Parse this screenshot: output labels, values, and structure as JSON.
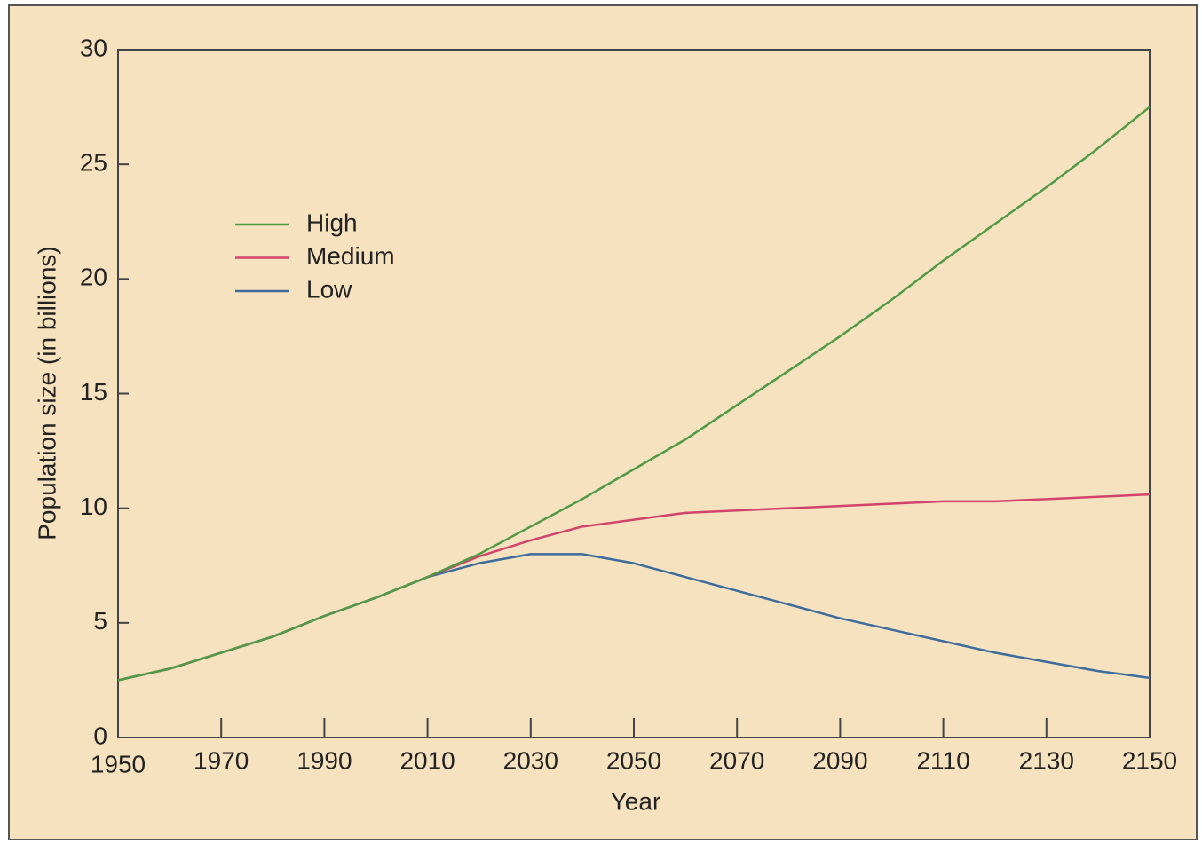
{
  "chart_data": {
    "type": "line",
    "x_label": "Year",
    "y_label": "Population size (in billions)",
    "x": [
      1950,
      1960,
      1970,
      1980,
      1990,
      2000,
      2010,
      2020,
      2030,
      2040,
      2050,
      2060,
      2070,
      2080,
      2090,
      2100,
      2110,
      2120,
      2130,
      2140,
      2150
    ],
    "series": [
      {
        "name": "High",
        "color": "#4f9a45",
        "values": [
          2.5,
          3.0,
          3.7,
          4.4,
          5.3,
          6.1,
          7.0,
          8.0,
          9.2,
          10.4,
          11.7,
          13.0,
          14.5,
          16.0,
          17.5,
          19.1,
          20.8,
          22.4,
          24.0,
          25.7,
          27.5
        ]
      },
      {
        "name": "Medium",
        "color": "#d2436c",
        "values": [
          2.5,
          3.0,
          3.7,
          4.4,
          5.3,
          6.1,
          7.0,
          7.9,
          8.6,
          9.2,
          9.5,
          9.8,
          9.9,
          10.0,
          10.1,
          10.2,
          10.3,
          10.3,
          10.4,
          10.5,
          10.6
        ]
      },
      {
        "name": "Low",
        "color": "#3d6c9c",
        "values": [
          2.5,
          3.0,
          3.7,
          4.4,
          5.3,
          6.1,
          7.0,
          7.6,
          8.0,
          8.0,
          7.6,
          7.0,
          6.4,
          5.8,
          5.2,
          4.7,
          4.2,
          3.7,
          3.3,
          2.9,
          2.6
        ]
      }
    ],
    "xlim": [
      1950,
      2150
    ],
    "xticks": [
      1950,
      1970,
      1990,
      2010,
      2030,
      2050,
      2070,
      2090,
      2110,
      2130,
      2150
    ],
    "ylim": [
      0,
      30
    ],
    "yticks": [
      0,
      5,
      10,
      15,
      20,
      25,
      30
    ],
    "legend": "upper left"
  }
}
